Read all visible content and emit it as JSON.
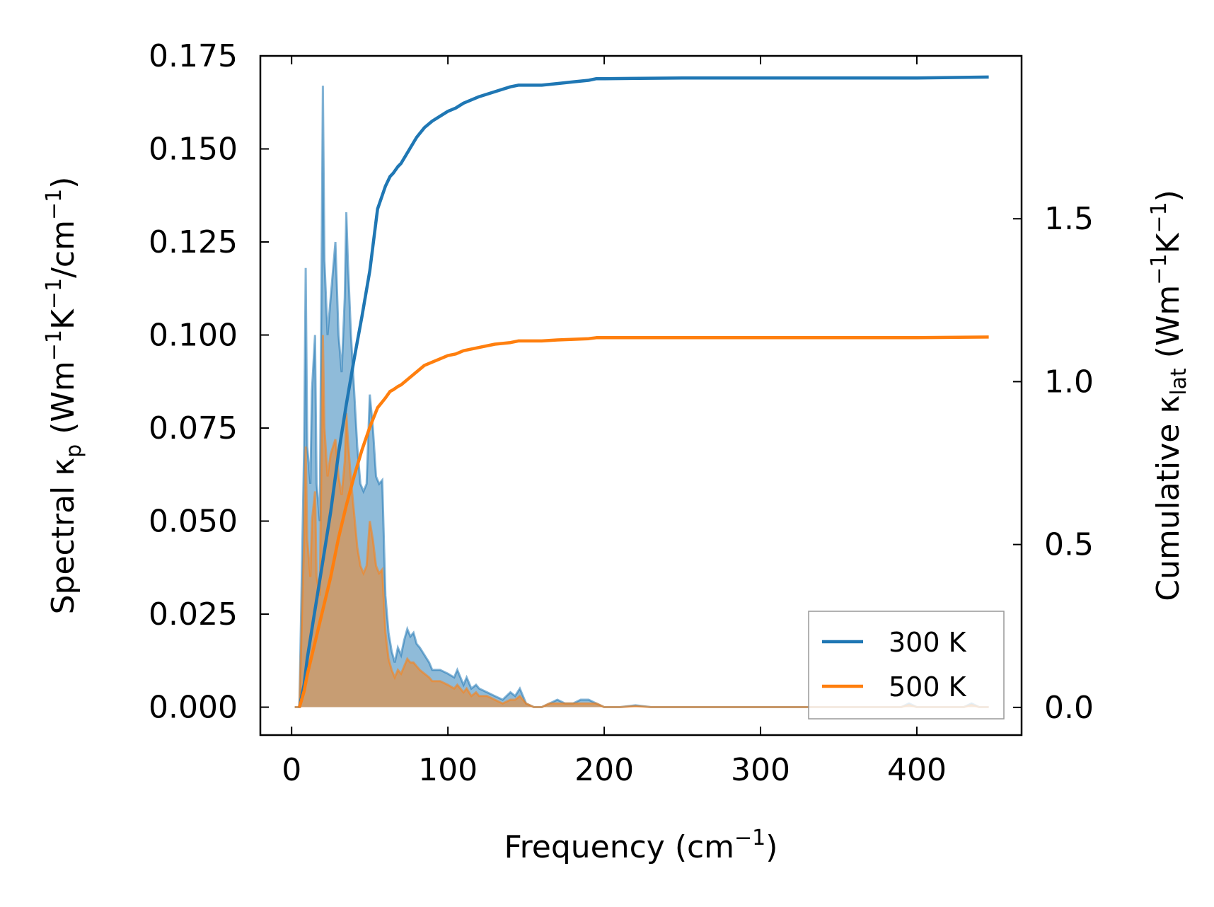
{
  "chart_data": {
    "type": "line",
    "xlabel": {
      "main": "Frequency (cm",
      "sup": "−1",
      "close": ")"
    },
    "ylabel_left": {
      "a": "Spectral κ",
      "sub": "p",
      "b": " (Wm",
      "sup1": "−1",
      "c": "K",
      "sup2": "−1",
      "d": "/cm",
      "sup3": "−1",
      "e": ")"
    },
    "ylabel_right": {
      "a": "Cumulative κ",
      "sub": "lat",
      "b": " (Wm",
      "sup1": "−1",
      "c": "K",
      "sup2": "−1",
      "d": ")"
    },
    "xlim": [
      -20,
      467
    ],
    "ylim_left": [
      -0.0075,
      0.175
    ],
    "ylim_right": [
      -0.085,
      2.0
    ],
    "x_ticks": [
      0,
      100,
      200,
      300,
      400
    ],
    "x_tick_labels": [
      "0",
      "100",
      "200",
      "300",
      "400"
    ],
    "y_left_ticks": [
      0.0,
      0.025,
      0.05,
      0.075,
      0.1,
      0.125,
      0.15,
      0.175
    ],
    "y_left_tick_labels": [
      "0.000",
      "0.025",
      "0.050",
      "0.075",
      "0.100",
      "0.125",
      "0.150",
      "0.175"
    ],
    "y_right_ticks": [
      0.0,
      0.5,
      1.0,
      1.5
    ],
    "y_right_tick_labels": [
      "0.0",
      "0.5",
      "1.0",
      "1.5"
    ],
    "legend": {
      "position": "lower-right",
      "entries": [
        "300 K",
        "500 K"
      ]
    },
    "series": [
      {
        "name": "300 K",
        "color": "#1f77b4",
        "spectral": {
          "x": [
            2,
            5,
            8,
            9,
            10,
            12,
            13,
            15,
            16,
            18,
            20,
            21,
            23,
            25,
            28,
            30,
            32,
            34,
            35,
            36,
            38,
            40,
            42,
            44,
            46,
            48,
            50,
            52,
            54,
            56,
            58,
            60,
            62,
            64,
            66,
            68,
            70,
            72,
            74,
            76,
            78,
            80,
            82,
            85,
            88,
            90,
            95,
            100,
            104,
            106,
            110,
            112,
            115,
            118,
            120,
            125,
            130,
            135,
            140,
            143,
            146,
            150,
            155,
            160,
            165,
            170,
            175,
            180,
            185,
            190,
            195,
            200,
            210,
            220,
            230,
            250,
            300,
            350,
            390,
            395,
            400,
            430,
            435,
            440,
            446
          ],
          "y": [
            0,
            0,
            0.07,
            0.118,
            0.07,
            0.06,
            0.085,
            0.1,
            0.06,
            0.05,
            0.167,
            0.12,
            0.1,
            0.11,
            0.125,
            0.1,
            0.09,
            0.11,
            0.133,
            0.12,
            0.1,
            0.085,
            0.07,
            0.06,
            0.058,
            0.06,
            0.084,
            0.075,
            0.062,
            0.06,
            0.061,
            0.03,
            0.02,
            0.015,
            0.012,
            0.016,
            0.014,
            0.018,
            0.021,
            0.019,
            0.02,
            0.017,
            0.016,
            0.014,
            0.012,
            0.01,
            0.01,
            0.009,
            0.008,
            0.01,
            0.006,
            0.008,
            0.005,
            0.006,
            0.005,
            0.004,
            0.003,
            0.002,
            0.004,
            0.003,
            0.005,
            0.001,
            0.0,
            0.0,
            0.001,
            0.002,
            0.001,
            0.001,
            0.002,
            0.002,
            0.001,
            0.0,
            0.0,
            0.0005,
            0.0,
            0.0,
            0.0,
            0.0,
            0.0,
            0.001,
            0.0,
            0.0,
            0.001,
            0.0,
            0.0
          ]
        },
        "cumulative": {
          "x": [
            5,
            8,
            10,
            15,
            20,
            25,
            30,
            35,
            40,
            45,
            50,
            55,
            60,
            63,
            65,
            68,
            70,
            75,
            80,
            85,
            90,
            95,
            100,
            105,
            110,
            120,
            130,
            140,
            145,
            150,
            160,
            170,
            180,
            190,
            195,
            200,
            250,
            300,
            350,
            400,
            446
          ],
          "y": [
            0.0,
            0.07,
            0.15,
            0.3,
            0.45,
            0.6,
            0.78,
            0.93,
            1.07,
            1.2,
            1.34,
            1.53,
            1.6,
            1.63,
            1.64,
            1.66,
            1.67,
            1.71,
            1.75,
            1.78,
            1.8,
            1.815,
            1.83,
            1.84,
            1.855,
            1.875,
            1.89,
            1.905,
            1.91,
            1.91,
            1.91,
            1.915,
            1.92,
            1.925,
            1.93,
            1.93,
            1.932,
            1.932,
            1.932,
            1.932,
            1.935
          ]
        }
      },
      {
        "name": "500 K",
        "color": "#ff7f0e",
        "spectral": {
          "x": [
            2,
            5,
            8,
            9,
            10,
            12,
            13,
            15,
            16,
            18,
            20,
            21,
            23,
            25,
            28,
            30,
            32,
            34,
            35,
            36,
            38,
            40,
            42,
            44,
            46,
            48,
            50,
            52,
            54,
            56,
            58,
            60,
            62,
            64,
            66,
            68,
            70,
            72,
            74,
            76,
            78,
            80,
            82,
            85,
            88,
            90,
            95,
            100,
            104,
            106,
            110,
            112,
            115,
            118,
            120,
            125,
            130,
            135,
            140,
            143,
            146,
            150,
            155,
            160,
            165,
            170,
            175,
            180,
            185,
            190,
            195,
            200,
            210,
            220,
            230,
            250,
            300,
            350,
            390,
            395,
            400,
            430,
            435,
            440,
            446
          ],
          "y": [
            0,
            0,
            0.045,
            0.07,
            0.045,
            0.035,
            0.05,
            0.058,
            0.035,
            0.03,
            0.1,
            0.075,
            0.062,
            0.068,
            0.072,
            0.062,
            0.057,
            0.066,
            0.079,
            0.072,
            0.061,
            0.052,
            0.043,
            0.038,
            0.036,
            0.038,
            0.05,
            0.045,
            0.038,
            0.036,
            0.037,
            0.02,
            0.013,
            0.01,
            0.008,
            0.01,
            0.009,
            0.011,
            0.013,
            0.012,
            0.012,
            0.011,
            0.01,
            0.009,
            0.008,
            0.007,
            0.007,
            0.006,
            0.005,
            0.006,
            0.004,
            0.005,
            0.003,
            0.004,
            0.003,
            0.003,
            0.002,
            0.001,
            0.002,
            0.002,
            0.003,
            0.001,
            0.0,
            0.0,
            0.001,
            0.001,
            0.001,
            0.001,
            0.001,
            0.001,
            0.001,
            0.0,
            0.0,
            0.0003,
            0.0,
            0.0,
            0.0,
            0.0,
            0.0,
            0.0006,
            0.0,
            0.0,
            0.0006,
            0.0,
            0.0
          ]
        },
        "cumulative": {
          "x": [
            5,
            8,
            10,
            15,
            20,
            25,
            30,
            35,
            40,
            45,
            50,
            55,
            60,
            63,
            65,
            68,
            70,
            75,
            80,
            85,
            90,
            95,
            100,
            105,
            110,
            120,
            130,
            140,
            145,
            150,
            160,
            170,
            180,
            190,
            195,
            200,
            250,
            300,
            350,
            400,
            446
          ],
          "y": [
            0.0,
            0.05,
            0.1,
            0.2,
            0.3,
            0.4,
            0.52,
            0.62,
            0.71,
            0.79,
            0.86,
            0.92,
            0.95,
            0.97,
            0.975,
            0.985,
            0.99,
            1.01,
            1.03,
            1.05,
            1.06,
            1.07,
            1.08,
            1.085,
            1.095,
            1.105,
            1.115,
            1.12,
            1.125,
            1.125,
            1.125,
            1.128,
            1.13,
            1.132,
            1.135,
            1.135,
            1.135,
            1.135,
            1.135,
            1.135,
            1.137
          ]
        }
      }
    ]
  }
}
